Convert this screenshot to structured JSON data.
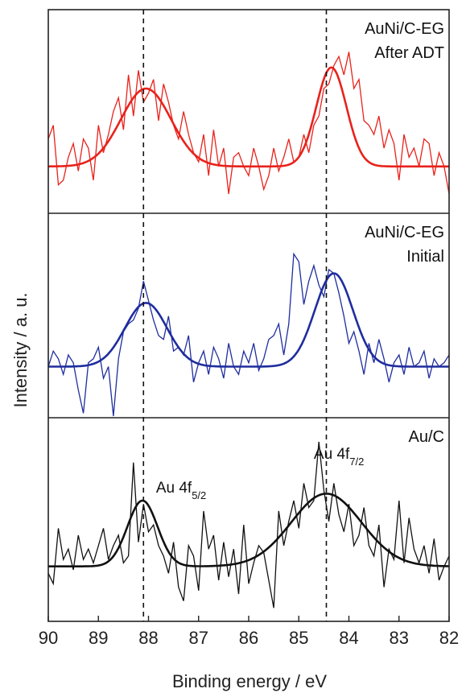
{
  "chart_data": {
    "type": "line",
    "title": "",
    "xlabel": "Binding energy / eV",
    "ylabel": "Intensity / a. u.",
    "xlim": [
      90,
      82
    ],
    "x_reversed": true,
    "x_ticks": [
      90,
      89,
      88,
      87,
      86,
      85,
      84,
      83,
      82
    ],
    "reference_lines": [
      88.1,
      84.45
    ],
    "annotations": [
      {
        "text": "Au 4f",
        "sub": "5/2",
        "x": 87.85
      },
      {
        "text": "Au 4f",
        "sub": "7/2",
        "x": 84.7
      }
    ],
    "panels": [
      {
        "label_lines": [
          "AuNi/C-EG",
          "After ADT"
        ],
        "color": "#e8221b",
        "fit": {
          "baseline": 0.0,
          "peaks": [
            {
              "center": 88.05,
              "height": 0.85,
              "sigma": 0.5
            },
            {
              "center": 84.35,
              "height": 1.08,
              "sigma": 0.3
            }
          ]
        },
        "raw": {
          "x": [
            90.0,
            89.9,
            89.8,
            89.7,
            89.6,
            89.5,
            89.4,
            89.3,
            89.2,
            89.1,
            89.0,
            88.9,
            88.8,
            88.7,
            88.6,
            88.5,
            88.4,
            88.3,
            88.2,
            88.1,
            88.0,
            87.9,
            87.8,
            87.7,
            87.6,
            87.5,
            87.4,
            87.3,
            87.2,
            87.1,
            87.0,
            86.9,
            86.8,
            86.7,
            86.6,
            86.5,
            86.4,
            86.3,
            86.2,
            86.1,
            86.0,
            85.9,
            85.8,
            85.7,
            85.6,
            85.5,
            85.4,
            85.3,
            85.2,
            85.1,
            85.0,
            84.9,
            84.8,
            84.7,
            84.6,
            84.5,
            84.4,
            84.3,
            84.2,
            84.1,
            84.0,
            83.9,
            83.8,
            83.7,
            83.6,
            83.5,
            83.4,
            83.3,
            83.2,
            83.1,
            83.0,
            82.9,
            82.8,
            82.7,
            82.6,
            82.5,
            82.4,
            82.3,
            82.2,
            82.1,
            82.0
          ],
          "y": [
            0.3,
            0.45,
            -0.2,
            -0.15,
            0.1,
            0.25,
            -0.05,
            0.3,
            0.2,
            -0.15,
            0.45,
            0.15,
            0.35,
            0.6,
            0.75,
            0.4,
            1.0,
            0.55,
            1.05,
            0.7,
            0.8,
            0.95,
            0.5,
            0.9,
            0.7,
            0.45,
            0.3,
            0.6,
            0.35,
            0.15,
            0.05,
            0.35,
            -0.1,
            0.4,
            0.0,
            0.2,
            -0.3,
            0.1,
            0.15,
            0.0,
            -0.1,
            0.2,
            0.0,
            -0.25,
            -0.1,
            0.2,
            -0.05,
            0.1,
            0.3,
            0.05,
            0.1,
            0.35,
            0.15,
            0.45,
            0.55,
            0.85,
            0.9,
            1.1,
            1.2,
            1.0,
            1.25,
            0.85,
            0.95,
            0.5,
            0.45,
            0.35,
            0.55,
            0.2,
            0.4,
            0.25,
            -0.15,
            0.35,
            0.1,
            0.2,
            0.0,
            0.3,
            0.25,
            -0.1,
            0.15,
            0.0,
            -0.3
          ]
        }
      },
      {
        "label_lines": [
          "AuNi/C-EG",
          "Initial"
        ],
        "color": "#1f2d9e",
        "fit": {
          "baseline": 0.0,
          "peaks": [
            {
              "center": 88.05,
              "height": 0.82,
              "sigma": 0.42
            },
            {
              "center": 84.3,
              "height": 1.2,
              "sigma": 0.38
            }
          ]
        },
        "raw": {
          "x": [
            90.0,
            89.9,
            89.8,
            89.7,
            89.6,
            89.5,
            89.4,
            89.3,
            89.2,
            89.1,
            89.0,
            88.9,
            88.8,
            88.7,
            88.6,
            88.5,
            88.4,
            88.3,
            88.2,
            88.1,
            88.0,
            87.9,
            87.8,
            87.7,
            87.6,
            87.5,
            87.4,
            87.3,
            87.2,
            87.1,
            87.0,
            86.9,
            86.8,
            86.7,
            86.6,
            86.5,
            86.4,
            86.3,
            86.2,
            86.1,
            86.0,
            85.9,
            85.8,
            85.7,
            85.6,
            85.5,
            85.4,
            85.3,
            85.2,
            85.1,
            85.0,
            84.9,
            84.8,
            84.7,
            84.6,
            84.5,
            84.4,
            84.3,
            84.2,
            84.1,
            84.0,
            83.9,
            83.8,
            83.7,
            83.6,
            83.5,
            83.4,
            83.3,
            83.2,
            83.1,
            83.0,
            82.9,
            82.8,
            82.7,
            82.6,
            82.5,
            82.4,
            82.3,
            82.2,
            82.1,
            82.0
          ],
          "y": [
            0.0,
            0.2,
            0.1,
            -0.1,
            0.15,
            0.05,
            -0.3,
            -0.6,
            0.05,
            0.1,
            0.25,
            -0.15,
            0.0,
            -0.7,
            0.1,
            0.45,
            0.55,
            0.6,
            0.75,
            1.1,
            0.85,
            0.6,
            0.4,
            0.35,
            0.65,
            0.2,
            0.25,
            0.15,
            0.4,
            -0.2,
            0.05,
            0.2,
            -0.1,
            0.25,
            0.1,
            -0.15,
            0.3,
            0.0,
            -0.1,
            0.2,
            0.05,
            0.3,
            -0.05,
            0.1,
            0.35,
            0.4,
            0.55,
            0.15,
            0.55,
            1.45,
            1.35,
            0.8,
            1.1,
            1.3,
            1.05,
            0.9,
            1.25,
            1.2,
            0.95,
            0.65,
            0.3,
            0.45,
            0.2,
            -0.1,
            0.3,
            0.05,
            0.35,
            0.1,
            -0.2,
            0.05,
            0.15,
            -0.1,
            0.25,
            0.0,
            0.05,
            0.2,
            -0.15,
            0.1,
            0.0,
            0.05,
            0.15
          ]
        }
      },
      {
        "label_lines": [
          "Au/C"
        ],
        "color": "#111111",
        "fit": {
          "baseline": 0.0,
          "peaks": [
            {
              "center": 88.12,
              "height": 0.95,
              "sigma": 0.3
            },
            {
              "center": 84.45,
              "height": 1.05,
              "sigma": 0.7
            }
          ]
        },
        "raw": {
          "x": [
            90.0,
            89.9,
            89.8,
            89.7,
            89.6,
            89.5,
            89.4,
            89.3,
            89.2,
            89.1,
            89.0,
            88.9,
            88.8,
            88.7,
            88.6,
            88.5,
            88.4,
            88.3,
            88.2,
            88.1,
            88.0,
            87.9,
            87.8,
            87.7,
            87.6,
            87.5,
            87.4,
            87.3,
            87.2,
            87.1,
            87.0,
            86.9,
            86.8,
            86.7,
            86.6,
            86.5,
            86.4,
            86.3,
            86.2,
            86.1,
            86.0,
            85.9,
            85.8,
            85.7,
            85.6,
            85.5,
            85.4,
            85.3,
            85.2,
            85.1,
            85.0,
            84.9,
            84.8,
            84.7,
            84.6,
            84.5,
            84.4,
            84.3,
            84.2,
            84.1,
            84.0,
            83.9,
            83.8,
            83.7,
            83.6,
            83.5,
            83.4,
            83.3,
            83.2,
            83.1,
            83.0,
            82.9,
            82.8,
            82.7,
            82.6,
            82.5,
            82.4,
            82.3,
            82.2,
            82.1,
            82.0
          ],
          "y": [
            -0.1,
            -0.25,
            0.55,
            0.1,
            0.25,
            -0.05,
            0.45,
            0.1,
            0.25,
            0.05,
            0.3,
            0.55,
            0.1,
            0.3,
            0.45,
            0.05,
            0.15,
            1.5,
            0.35,
            0.9,
            0.5,
            0.6,
            0.3,
            0.15,
            -0.1,
            0.35,
            -0.3,
            -0.5,
            0.3,
            0.15,
            -0.35,
            0.8,
            0.25,
            0.45,
            -0.2,
            0.35,
            -0.15,
            0.25,
            -0.4,
            0.6,
            -0.25,
            0.05,
            0.3,
            0.2,
            -0.2,
            -0.6,
            0.8,
            0.3,
            0.65,
            0.95,
            0.55,
            1.2,
            0.85,
            0.95,
            1.8,
            1.1,
            0.65,
            1.2,
            0.75,
            0.5,
            0.9,
            0.3,
            0.45,
            0.85,
            0.3,
            0.15,
            0.6,
            -0.3,
            0.25,
            0.1,
            0.95,
            0.05,
            0.7,
            0.25,
            0.05,
            0.3,
            -0.1,
            0.4,
            -0.2,
            0.0,
            0.15
          ]
        }
      }
    ]
  }
}
